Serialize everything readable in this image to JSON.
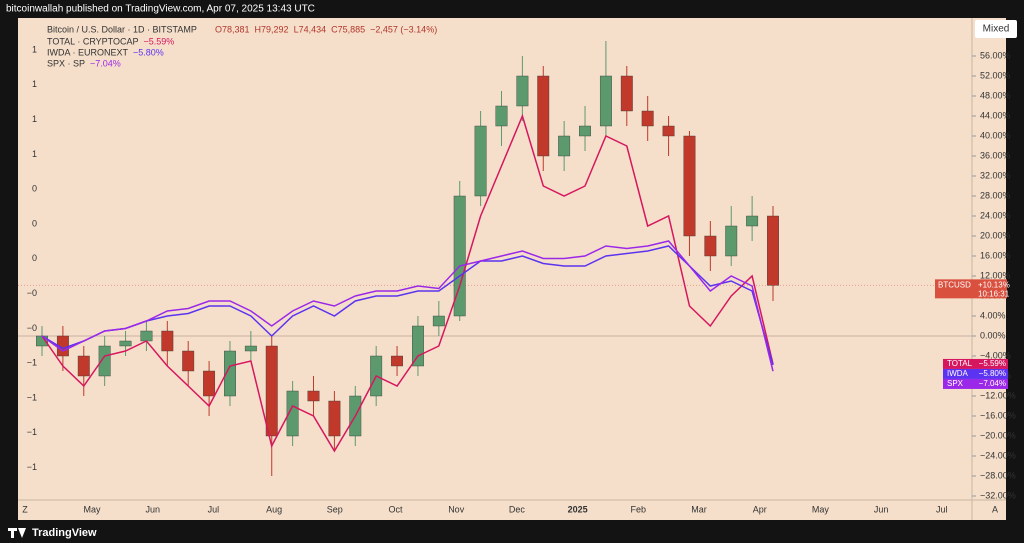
{
  "ui": {
    "published": "bitcoinwallah published on TradingView.com, Apr 07, 2025 13:43 UTC",
    "scale_mode": "Mixed",
    "auto": "A",
    "zoom": "Z",
    "brand": "TradingView"
  },
  "chart_data": {
    "type": "candlestick",
    "candles": {
      "name": "BTCUSD",
      "legend": "Bitcoin / U.S. Dollar · 1D · BITSTAMP",
      "ohlc": [
        "O78,381",
        "H79,292",
        "L74,434",
        "C75,885",
        "−2,457 (−3.14%)"
      ],
      "up_color": "#5c9a6e",
      "down_color": "#c0392b",
      "open": [
        -2,
        0,
        -4,
        -8,
        -2,
        -1,
        1,
        -3,
        -7,
        -12,
        -3,
        -2,
        -20,
        -11,
        -13,
        -20,
        -12,
        -4,
        -6,
        2,
        4,
        28,
        42,
        46,
        52,
        36,
        40,
        42,
        52,
        45,
        42,
        40,
        20,
        16,
        22,
        24
      ],
      "high": [
        2,
        2,
        -2,
        0,
        1,
        3,
        3,
        -1,
        -5,
        -1,
        1,
        0,
        -9,
        -8,
        -11,
        -10,
        -2,
        -2,
        4,
        7,
        31,
        45,
        49,
        56,
        54,
        43,
        46,
        59,
        54,
        48,
        44,
        41,
        23,
        26,
        28,
        26
      ],
      "low": [
        -4,
        -7,
        -12,
        -10,
        -4,
        -3,
        -6,
        -10,
        -16,
        -14,
        -5,
        -28,
        -22,
        -16,
        -23,
        -22,
        -14,
        -8,
        -8,
        0,
        3,
        26,
        38,
        43,
        33,
        33,
        37,
        40,
        42,
        39,
        36,
        16,
        13,
        14,
        19,
        7
      ],
      "close": [
        0,
        -4,
        -8,
        -2,
        -1,
        1,
        -3,
        -7,
        -12,
        -3,
        -2,
        -20,
        -11,
        -13,
        -20,
        -12,
        -4,
        -6,
        2,
        4,
        28,
        42,
        46,
        52,
        36,
        40,
        42,
        52,
        45,
        42,
        40,
        20,
        16,
        22,
        24,
        10.13
      ],
      "last_label": "+10.13%",
      "countdown": "10:16:31"
    },
    "series": [
      {
        "name": "TOTAL",
        "legend": "TOTAL · CRYPTOCAP",
        "color": "#d6175f",
        "last_label": "−5.59%",
        "values": [
          0,
          -6,
          -10,
          -4,
          -3,
          -1,
          -6,
          -10,
          -14,
          -6,
          -5,
          -22,
          -14,
          -16,
          -23,
          -16,
          -8,
          -10,
          -4,
          -2,
          10,
          24,
          34,
          44,
          30,
          28,
          30,
          40,
          38,
          22,
          24,
          6,
          2,
          8,
          12,
          -5.59
        ]
      },
      {
        "name": "IWDA",
        "legend": "IWDA · EURONEXT",
        "color": "#5b33f0",
        "last_label": "−5.80%",
        "values": [
          0,
          -2.5,
          -1,
          1,
          1.5,
          3,
          4,
          4.5,
          6,
          6,
          4,
          0,
          4,
          6,
          4,
          7,
          8,
          8,
          9,
          9,
          12,
          15,
          15,
          16,
          14.5,
          14,
          14,
          16,
          16.5,
          17,
          18,
          14,
          10,
          11,
          9,
          -5.8
        ]
      },
      {
        "name": "SPX",
        "legend": "SPX · SP",
        "color": "#9b28e8",
        "last_label": "−7.04%",
        "values": [
          0,
          -3,
          -1,
          1,
          1.5,
          3,
          5,
          5.5,
          7,
          7,
          5,
          2,
          5,
          7,
          6,
          8,
          9,
          9,
          10,
          9.5,
          14,
          15,
          16,
          17,
          15.5,
          15.5,
          16,
          18,
          17.5,
          18,
          19,
          14,
          9,
          12,
          10,
          -7.04
        ]
      }
    ],
    "ylim": [
      -32.8,
      63.6
    ],
    "yticks": [
      {
        "value": 56,
        "label": "56.00%"
      },
      {
        "value": 52,
        "label": "52.00%"
      },
      {
        "value": 48,
        "label": "48.00%"
      },
      {
        "value": 44,
        "label": "44.00%"
      },
      {
        "value": 40,
        "label": "40.00%"
      },
      {
        "value": 36,
        "label": "36.00%"
      },
      {
        "value": 32,
        "label": "32.00%"
      },
      {
        "value": 28,
        "label": "28.00%"
      },
      {
        "value": 24,
        "label": "24.00%"
      },
      {
        "value": 20,
        "label": "20.00%"
      },
      {
        "value": 16,
        "label": "16.00%"
      },
      {
        "value": 12,
        "label": "12.00%"
      },
      {
        "value": 8,
        "label": "8.00%"
      },
      {
        "value": 4,
        "label": "4.00%"
      },
      {
        "value": 0,
        "label": "0.00%"
      },
      {
        "value": -4,
        "label": "−4.00%"
      },
      {
        "value": -8,
        "label": "−8.00%"
      },
      {
        "value": -12,
        "label": "−12.00%"
      },
      {
        "value": -16,
        "label": "−16.00%"
      },
      {
        "value": -20,
        "label": "−20.00%"
      },
      {
        "value": -24,
        "label": "−24.00%"
      },
      {
        "value": -28,
        "label": "−28.00%"
      },
      {
        "value": -32,
        "label": "−32.00%"
      }
    ],
    "xtick_labels": [
      "May",
      "Jun",
      "Jul",
      "Aug",
      "Sep",
      "Oct",
      "Nov",
      "Dec",
      "2025",
      "Feb",
      "Mar",
      "Apr",
      "May",
      "Jun",
      "Jul"
    ],
    "left_labels": [
      "1",
      "1",
      "1",
      "1",
      "0",
      "0",
      "0",
      "−0",
      "−0",
      "−1",
      "−1",
      "−1",
      "−1"
    ]
  }
}
